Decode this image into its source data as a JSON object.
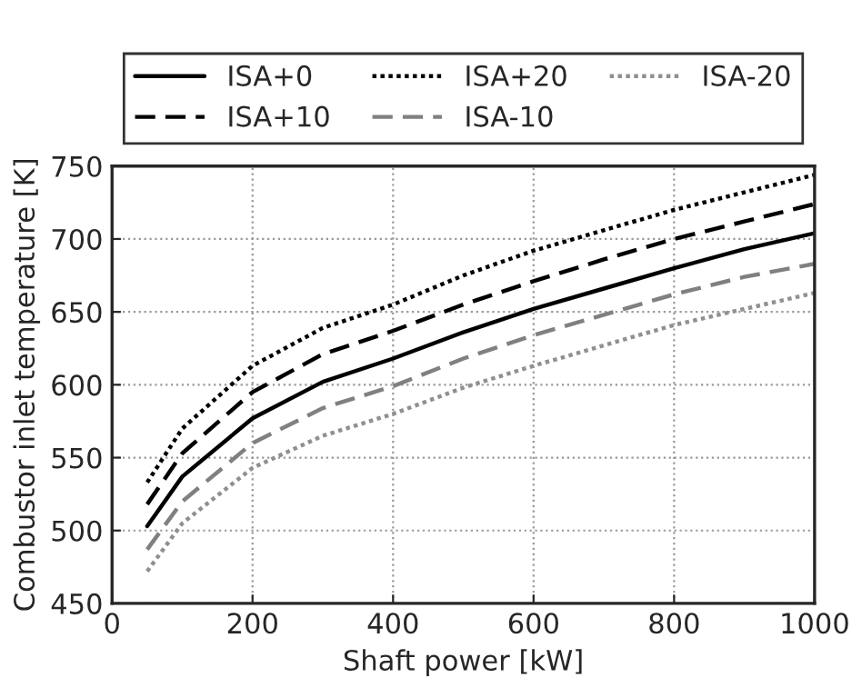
{
  "chart_data": {
    "type": "line",
    "xlabel": "Shaft power [kW]",
    "ylabel": "Combustor inlet temperature [K]",
    "x": [
      50,
      100,
      200,
      300,
      400,
      500,
      600,
      700,
      800,
      900,
      1000
    ],
    "series": [
      {
        "name": "ISA+0",
        "color": "#000000",
        "line_style": "solid",
        "values": [
          503,
          537,
          577,
          602,
          618,
          636,
          652,
          666,
          680,
          693,
          704
        ]
      },
      {
        "name": "ISA+10",
        "color": "#000000",
        "line_style": "dashed",
        "values": [
          518,
          553,
          595,
          621,
          637,
          655,
          671,
          686,
          700,
          712,
          724
        ]
      },
      {
        "name": "ISA+20",
        "color": "#000000",
        "line_style": "dotted",
        "values": [
          533,
          570,
          613,
          639,
          655,
          675,
          692,
          706,
          720,
          732,
          744
        ]
      },
      {
        "name": "ISA-10",
        "color": "#808080",
        "line_style": "dashed",
        "values": [
          487,
          520,
          560,
          584,
          599,
          618,
          634,
          648,
          662,
          674,
          683
        ]
      },
      {
        "name": "ISA-20",
        "color": "#909090",
        "line_style": "dotted",
        "values": [
          472,
          505,
          543,
          565,
          580,
          598,
          613,
          627,
          641,
          652,
          663
        ]
      }
    ],
    "xlim": [
      0,
      1000
    ],
    "xticks": [
      0,
      200,
      400,
      600,
      800,
      1000
    ],
    "ylim": [
      450,
      750
    ],
    "yticks": [
      450,
      500,
      550,
      600,
      650,
      700,
      750
    ],
    "grid": true,
    "legend": "top",
    "marker": "none"
  }
}
